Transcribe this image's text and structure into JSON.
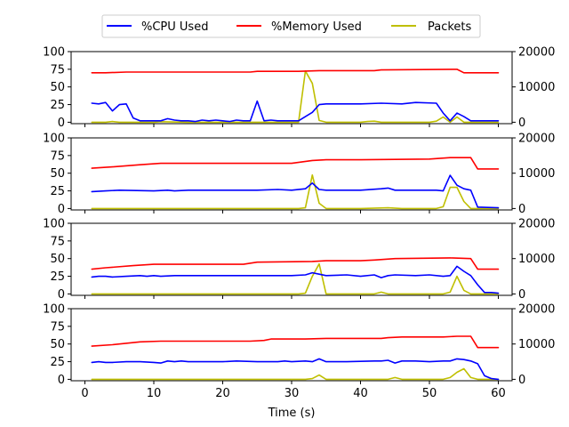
{
  "chart_data": {
    "type": "line",
    "xlabel": "Time (s)",
    "x_ticks": [
      "0",
      "10",
      "20",
      "30",
      "40",
      "50",
      "60"
    ],
    "xlim": [
      -2,
      62
    ],
    "left_axis": {
      "ylim": [
        -2,
        100
      ],
      "ticks": [
        "0",
        "25",
        "50",
        "75",
        "100"
      ]
    },
    "right_axis": {
      "ylim": [
        -400,
        20000
      ],
      "ticks": [
        "0",
        "10000",
        "20000"
      ]
    },
    "legend": {
      "placement": "top-center",
      "entries": [
        {
          "label": "%CPU Used",
          "color": "#0000ff"
        },
        {
          "label": "%Memory Used",
          "color": "#ff0000"
        },
        {
          "label": "Packets",
          "color": "#bfbf00"
        }
      ]
    },
    "colors": {
      "cpu": "#0000ff",
      "memory": "#ff0000",
      "packets": "#bfbf00"
    },
    "panels": [
      {
        "cpu": [
          [
            1,
            27
          ],
          [
            2,
            26
          ],
          [
            3,
            28
          ],
          [
            4,
            16
          ],
          [
            5,
            25
          ],
          [
            6,
            26
          ],
          [
            7,
            6
          ],
          [
            8,
            2
          ],
          [
            9,
            2
          ],
          [
            10,
            2
          ],
          [
            11,
            2
          ],
          [
            12,
            5
          ],
          [
            13,
            3
          ],
          [
            14,
            2
          ],
          [
            15,
            2
          ],
          [
            16,
            1
          ],
          [
            17,
            3
          ],
          [
            18,
            2
          ],
          [
            19,
            3
          ],
          [
            20,
            2
          ],
          [
            21,
            1
          ],
          [
            22,
            3
          ],
          [
            23,
            2
          ],
          [
            24,
            2
          ],
          [
            25,
            30
          ],
          [
            26,
            2
          ],
          [
            27,
            3
          ],
          [
            28,
            2
          ],
          [
            29,
            2
          ],
          [
            30,
            2
          ],
          [
            31,
            2
          ],
          [
            32,
            8
          ],
          [
            33,
            14
          ],
          [
            34,
            25
          ],
          [
            35,
            26
          ],
          [
            40,
            26
          ],
          [
            43,
            27
          ],
          [
            46,
            26
          ],
          [
            48,
            28
          ],
          [
            51,
            27
          ],
          [
            52,
            13
          ],
          [
            53,
            2
          ],
          [
            54,
            13
          ],
          [
            55,
            8
          ],
          [
            56,
            2
          ],
          [
            60,
            2
          ]
        ],
        "memory": [
          [
            1,
            70
          ],
          [
            3,
            70
          ],
          [
            6,
            71
          ],
          [
            10,
            71
          ],
          [
            24,
            71
          ],
          [
            25,
            72
          ],
          [
            31,
            72
          ],
          [
            34,
            73
          ],
          [
            42,
            73
          ],
          [
            43,
            74
          ],
          [
            54,
            75
          ],
          [
            55,
            70
          ],
          [
            60,
            70
          ]
        ],
        "packets": [
          [
            1,
            0
          ],
          [
            3,
            0
          ],
          [
            4,
            200
          ],
          [
            5,
            0
          ],
          [
            10,
            0
          ],
          [
            11,
            150
          ],
          [
            15,
            0
          ],
          [
            30,
            0
          ],
          [
            31,
            0
          ],
          [
            32,
            14500
          ],
          [
            33,
            11000
          ],
          [
            34,
            500
          ],
          [
            35,
            0
          ],
          [
            40,
            0
          ],
          [
            41,
            200
          ],
          [
            42,
            300
          ],
          [
            43,
            0
          ],
          [
            50,
            0
          ],
          [
            51,
            300
          ],
          [
            52,
            1500
          ],
          [
            53,
            0
          ],
          [
            54,
            1500
          ],
          [
            55,
            0
          ],
          [
            60,
            0
          ]
        ]
      },
      {
        "cpu": [
          [
            1,
            24
          ],
          [
            3,
            25
          ],
          [
            5,
            26
          ],
          [
            10,
            25
          ],
          [
            12,
            26
          ],
          [
            13,
            25
          ],
          [
            15,
            26
          ],
          [
            20,
            26
          ],
          [
            25,
            26
          ],
          [
            28,
            27
          ],
          [
            30,
            26
          ],
          [
            32,
            28
          ],
          [
            33,
            36
          ],
          [
            34,
            27
          ],
          [
            35,
            26
          ],
          [
            40,
            26
          ],
          [
            43,
            28
          ],
          [
            44,
            29
          ],
          [
            45,
            26
          ],
          [
            51,
            26
          ],
          [
            52,
            25
          ],
          [
            53,
            47
          ],
          [
            54,
            33
          ],
          [
            55,
            28
          ],
          [
            56,
            26
          ],
          [
            57,
            2
          ],
          [
            60,
            1
          ]
        ],
        "memory": [
          [
            1,
            57
          ],
          [
            4,
            59
          ],
          [
            8,
            62
          ],
          [
            11,
            64
          ],
          [
            20,
            64
          ],
          [
            30,
            64
          ],
          [
            33,
            68
          ],
          [
            35,
            69
          ],
          [
            40,
            69
          ],
          [
            50,
            70
          ],
          [
            53,
            72
          ],
          [
            56,
            72
          ],
          [
            57,
            56
          ],
          [
            60,
            56
          ]
        ],
        "packets": [
          [
            1,
            0
          ],
          [
            10,
            0
          ],
          [
            20,
            0
          ],
          [
            30,
            0
          ],
          [
            31,
            0
          ],
          [
            32,
            200
          ],
          [
            33,
            9500
          ],
          [
            34,
            1500
          ],
          [
            35,
            0
          ],
          [
            40,
            0
          ],
          [
            44,
            200
          ],
          [
            46,
            0
          ],
          [
            51,
            0
          ],
          [
            52,
            500
          ],
          [
            53,
            6000
          ],
          [
            54,
            6000
          ],
          [
            55,
            2000
          ],
          [
            56,
            0
          ],
          [
            60,
            0
          ]
        ]
      },
      {
        "cpu": [
          [
            1,
            24
          ],
          [
            2,
            25
          ],
          [
            3,
            25
          ],
          [
            4,
            24
          ],
          [
            6,
            25
          ],
          [
            8,
            26
          ],
          [
            9,
            25
          ],
          [
            10,
            26
          ],
          [
            11,
            25
          ],
          [
            13,
            26
          ],
          [
            15,
            26
          ],
          [
            20,
            26
          ],
          [
            25,
            26
          ],
          [
            28,
            26
          ],
          [
            30,
            26
          ],
          [
            32,
            27
          ],
          [
            33,
            30
          ],
          [
            34,
            28
          ],
          [
            35,
            26
          ],
          [
            38,
            27
          ],
          [
            40,
            25
          ],
          [
            42,
            27
          ],
          [
            43,
            23
          ],
          [
            44,
            26
          ],
          [
            45,
            27
          ],
          [
            48,
            26
          ],
          [
            50,
            27
          ],
          [
            52,
            25
          ],
          [
            53,
            26
          ],
          [
            54,
            39
          ],
          [
            55,
            32
          ],
          [
            56,
            26
          ],
          [
            57,
            13
          ],
          [
            58,
            2
          ],
          [
            59,
            2
          ],
          [
            60,
            1
          ]
        ],
        "memory": [
          [
            1,
            35
          ],
          [
            3,
            37
          ],
          [
            7,
            40
          ],
          [
            10,
            42
          ],
          [
            15,
            42
          ],
          [
            20,
            42
          ],
          [
            23,
            42
          ],
          [
            25,
            45
          ],
          [
            33,
            46
          ],
          [
            35,
            47
          ],
          [
            40,
            47
          ],
          [
            42,
            48
          ],
          [
            45,
            50
          ],
          [
            53,
            51
          ],
          [
            56,
            50
          ],
          [
            57,
            35
          ],
          [
            60,
            35
          ]
        ],
        "packets": [
          [
            1,
            0
          ],
          [
            10,
            0
          ],
          [
            20,
            0
          ],
          [
            30,
            0
          ],
          [
            31,
            0
          ],
          [
            32,
            200
          ],
          [
            33,
            5000
          ],
          [
            34,
            8500
          ],
          [
            35,
            0
          ],
          [
            40,
            0
          ],
          [
            42,
            0
          ],
          [
            43,
            500
          ],
          [
            44,
            0
          ],
          [
            50,
            0
          ],
          [
            52,
            0
          ],
          [
            53,
            500
          ],
          [
            54,
            5000
          ],
          [
            55,
            1000
          ],
          [
            56,
            0
          ],
          [
            60,
            0
          ]
        ]
      },
      {
        "cpu": [
          [
            1,
            24
          ],
          [
            2,
            25
          ],
          [
            3,
            24
          ],
          [
            4,
            24
          ],
          [
            6,
            25
          ],
          [
            8,
            25
          ],
          [
            10,
            24
          ],
          [
            11,
            23
          ],
          [
            12,
            26
          ],
          [
            13,
            25
          ],
          [
            14,
            26
          ],
          [
            15,
            25
          ],
          [
            20,
            25
          ],
          [
            22,
            26
          ],
          [
            25,
            25
          ],
          [
            28,
            25
          ],
          [
            29,
            26
          ],
          [
            30,
            25
          ],
          [
            32,
            26
          ],
          [
            33,
            25
          ],
          [
            34,
            29
          ],
          [
            35,
            25
          ],
          [
            38,
            25
          ],
          [
            42,
            26
          ],
          [
            43,
            26
          ],
          [
            44,
            27
          ],
          [
            45,
            23
          ],
          [
            46,
            26
          ],
          [
            48,
            26
          ],
          [
            50,
            25
          ],
          [
            52,
            26
          ],
          [
            53,
            26
          ],
          [
            54,
            29
          ],
          [
            55,
            28
          ],
          [
            56,
            26
          ],
          [
            57,
            22
          ],
          [
            58,
            5
          ],
          [
            59,
            1
          ],
          [
            60,
            0
          ]
        ],
        "memory": [
          [
            1,
            47
          ],
          [
            4,
            49
          ],
          [
            8,
            53
          ],
          [
            11,
            54
          ],
          [
            20,
            54
          ],
          [
            24,
            54
          ],
          [
            26,
            55
          ],
          [
            27,
            57
          ],
          [
            32,
            57
          ],
          [
            35,
            58
          ],
          [
            40,
            58
          ],
          [
            43,
            58
          ],
          [
            44,
            59
          ],
          [
            46,
            60
          ],
          [
            51,
            60
          ],
          [
            52,
            60
          ],
          [
            54,
            61
          ],
          [
            56,
            61
          ],
          [
            57,
            45
          ],
          [
            60,
            45
          ]
        ],
        "packets": [
          [
            1,
            0
          ],
          [
            10,
            0
          ],
          [
            20,
            0
          ],
          [
            30,
            0
          ],
          [
            32,
            0
          ],
          [
            33,
            200
          ],
          [
            34,
            1200
          ],
          [
            35,
            0
          ],
          [
            40,
            0
          ],
          [
            44,
            0
          ],
          [
            45,
            500
          ],
          [
            46,
            0
          ],
          [
            50,
            0
          ],
          [
            52,
            0
          ],
          [
            53,
            500
          ],
          [
            54,
            2000
          ],
          [
            55,
            3000
          ],
          [
            56,
            500
          ],
          [
            57,
            0
          ],
          [
            60,
            0
          ]
        ]
      }
    ]
  }
}
